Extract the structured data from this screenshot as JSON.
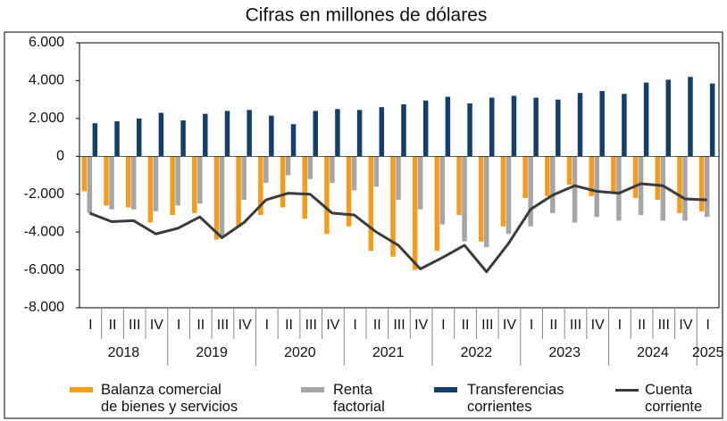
{
  "chart_data": {
    "type": "bar-line",
    "title": "Cifras en millones de dólares",
    "categories": [
      "I",
      "II",
      "III",
      "IV",
      "I",
      "II",
      "III",
      "IV",
      "I",
      "II",
      "III",
      "IV",
      "I",
      "II",
      "III",
      "IV",
      "I",
      "II",
      "III",
      "IV",
      "I",
      "II",
      "III",
      "IV",
      "I",
      "II",
      "III",
      "IV",
      "I"
    ],
    "years": [
      "2018",
      "2019",
      "2020",
      "2021",
      "2022",
      "2023",
      "2024",
      "2025"
    ],
    "ylim": [
      -8000,
      6000
    ],
    "yticks": [
      {
        "value": -8000,
        "label": "-8.000"
      },
      {
        "value": -6000,
        "label": "-6.000"
      },
      {
        "value": -4000,
        "label": "-4.000"
      },
      {
        "value": -2000,
        "label": "-2.000"
      },
      0,
      {
        "value": 2000,
        "label": "2.000"
      },
      {
        "value": 4000,
        "label": "4.000"
      },
      {
        "value": 6000,
        "label": "6.000"
      }
    ],
    "grid": false,
    "series": [
      {
        "name": "Balanza comercial de bienes y servicios",
        "color": "#f39c1e",
        "kind": "bar",
        "values": [
          -1850,
          -2600,
          -2700,
          -3500,
          -3100,
          -3000,
          -4400,
          -3700,
          -3100,
          -2700,
          -3300,
          -4100,
          -3700,
          -5000,
          -5300,
          -6000,
          -5000,
          -3100,
          -4500,
          -3700,
          -2200,
          -2100,
          -1500,
          -2100,
          -1900,
          -2200,
          -2300,
          -3000,
          -2900
        ]
      },
      {
        "name": "Renta factorial",
        "color": "#a6a6a6",
        "kind": "bar",
        "values": [
          -3000,
          -2800,
          -2800,
          -2900,
          -2600,
          -2500,
          -4300,
          -2300,
          -1400,
          -1000,
          -1200,
          -1400,
          -1800,
          -1600,
          -2300,
          -2800,
          -3600,
          -4500,
          -4800,
          -4100,
          -3700,
          -3000,
          -3500,
          -3200,
          -3400,
          -3100,
          -3400,
          -3400,
          -3200
        ]
      },
      {
        "name": "Transferencias corrientes",
        "color": "#143f6b",
        "kind": "bar",
        "values": [
          1750,
          1850,
          2000,
          2300,
          1900,
          2250,
          2400,
          2450,
          2150,
          1700,
          2400,
          2500,
          2450,
          2600,
          2750,
          2950,
          3150,
          2800,
          3100,
          3200,
          3100,
          3000,
          3350,
          3450,
          3300,
          3900,
          4050,
          4200,
          3850
        ]
      },
      {
        "name": "Cuenta corriente",
        "color": "#3b3b3b",
        "kind": "line",
        "values": [
          -3000,
          -3450,
          -3400,
          -4100,
          -3800,
          -3200,
          -4300,
          -3500,
          -2300,
          -1950,
          -2000,
          -3000,
          -3100,
          -4000,
          -4700,
          -5950,
          -5350,
          -4700,
          -6100,
          -4600,
          -2800,
          -2050,
          -1550,
          -1850,
          -1950,
          -1450,
          -1550,
          -2250,
          -2300
        ]
      }
    ]
  }
}
